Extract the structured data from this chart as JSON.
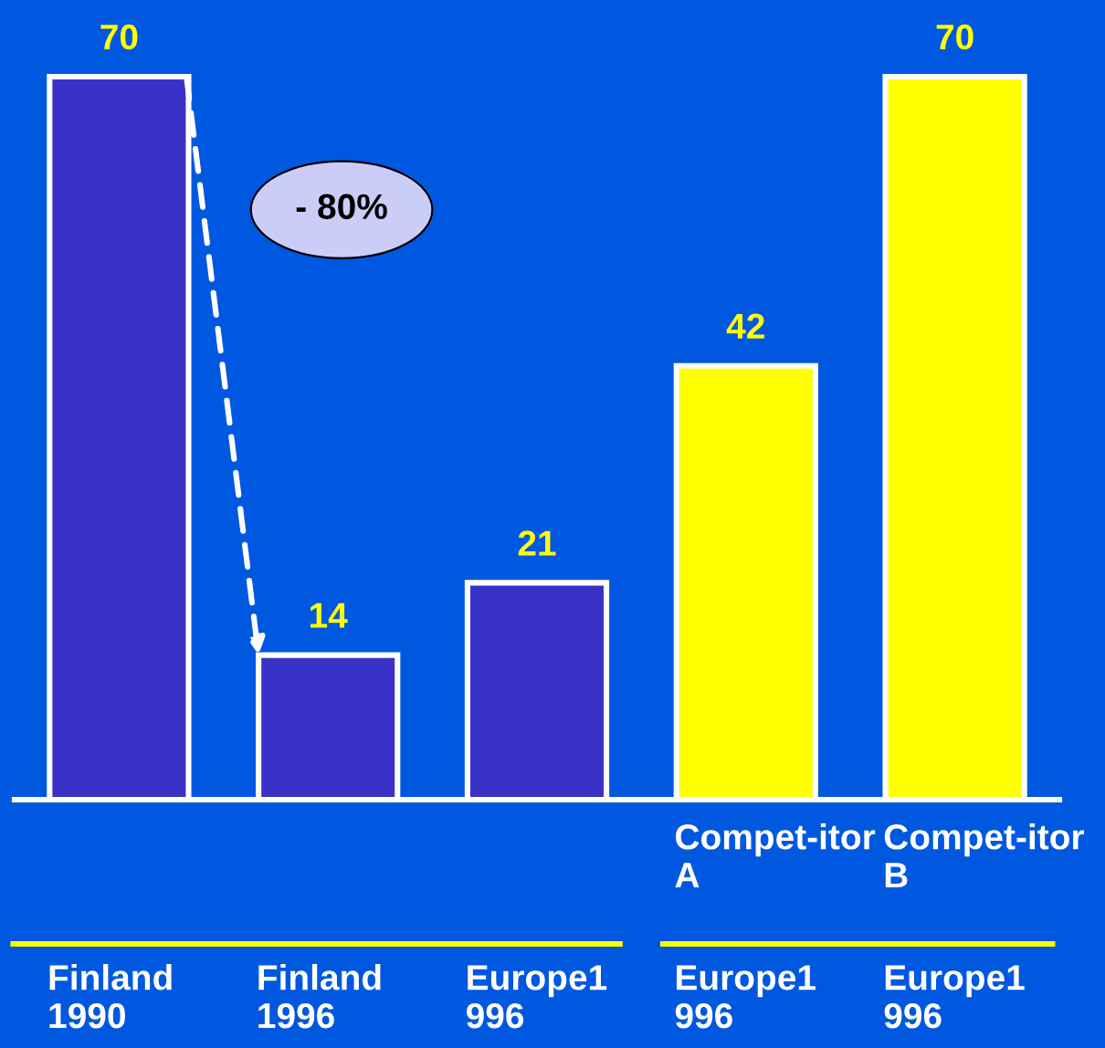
{
  "chart_data": {
    "type": "bar",
    "categories": [
      "Finland\n1990",
      "Finland\n1996",
      "Europe1\n996",
      "Compet-itor\nA\n\nEurope1\n996",
      "Compet-itor\nB\n\nEurope1\n996"
    ],
    "values": [
      70,
      14,
      21,
      42,
      70
    ],
    "colors": [
      "#3a32c8",
      "#3a32c8",
      "#3a32c8",
      "#ffff00",
      "#ffff00"
    ],
    "data_labels": true,
    "tick_labels": "x",
    "annotations": [
      "- 80%"
    ]
  }
}
